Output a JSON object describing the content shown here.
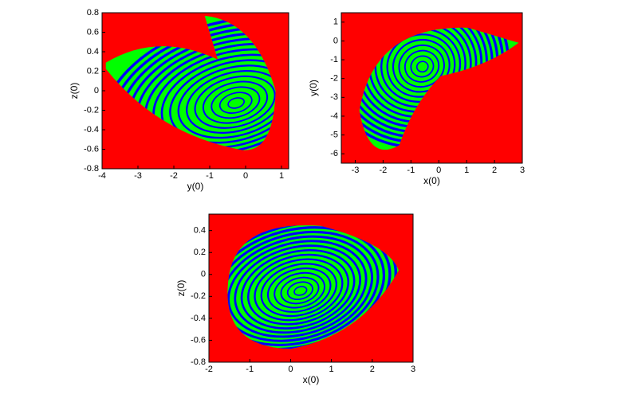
{
  "chart_data": [
    {
      "type": "basin",
      "colors": [
        "#ff0000",
        "#00ff00",
        "#0000ff"
      ],
      "xlabel": "y(0)",
      "ylabel": "z(0)",
      "xlim": [
        -4,
        1.2
      ],
      "ylim": [
        -0.8,
        0.8
      ],
      "xticks": [
        -4,
        -3,
        -2,
        -1,
        0,
        1
      ],
      "yticks": [
        -0.8,
        -0.6,
        -0.4,
        -0.2,
        0,
        0.2,
        0.4,
        0.6,
        0.8
      ]
    },
    {
      "type": "basin",
      "colors": [
        "#ff0000",
        "#00ff00",
        "#0000ff"
      ],
      "xlabel": "x(0)",
      "ylabel": "y(0)",
      "xlim": [
        -3.5,
        3
      ],
      "ylim": [
        -6.5,
        1.5
      ],
      "xticks": [
        -3,
        -2,
        -1,
        0,
        1,
        2,
        3
      ],
      "yticks": [
        -6,
        -5,
        -4,
        -3,
        -2,
        -1,
        0,
        1
      ]
    },
    {
      "type": "basin",
      "colors": [
        "#ff0000",
        "#00ff00",
        "#0000ff"
      ],
      "xlabel": "x(0)",
      "ylabel": "z(0)",
      "xlim": [
        -2,
        3
      ],
      "ylim": [
        -0.8,
        0.55
      ],
      "xticks": [
        -2,
        -1,
        0,
        1,
        2,
        3
      ],
      "yticks": [
        -0.8,
        -0.6,
        -0.4,
        -0.2,
        0,
        0.2,
        0.4
      ]
    }
  ]
}
